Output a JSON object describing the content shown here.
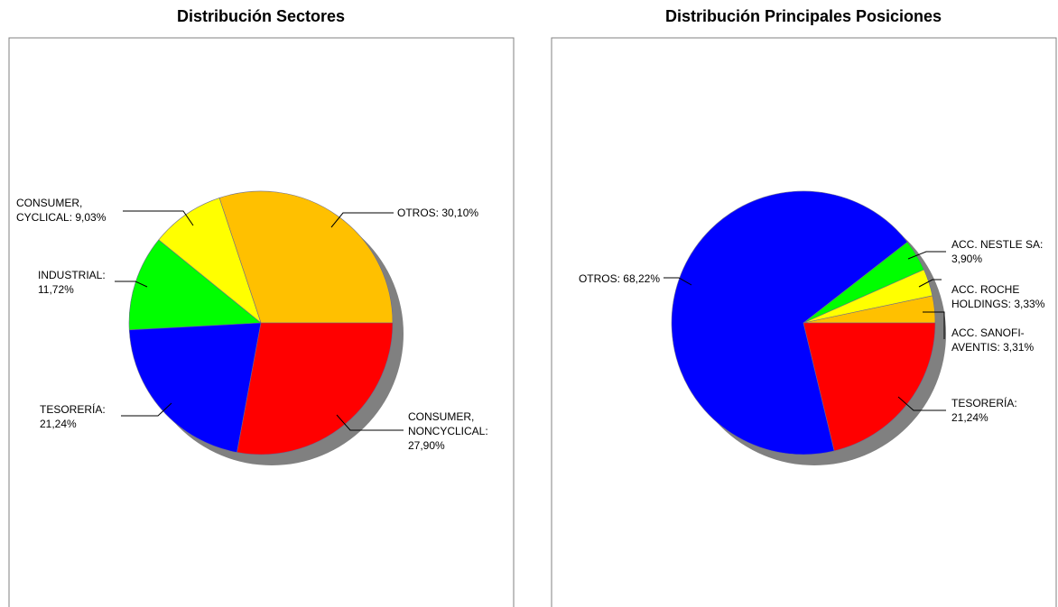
{
  "chart_data": [
    {
      "type": "pie",
      "title": "Distribución Sectores",
      "values": [
        30.1,
        9.03,
        11.72,
        21.24,
        27.9
      ],
      "value_labels": [
        "OTROS: 30,10%",
        "CONSUMER,\nCYCLICAL: 9,03%",
        "INDUSTRIAL:\n11,72%",
        "TESORERÍA:\n21,24%",
        "CONSUMER,\nNONCYCLICAL:\n27,90%"
      ],
      "colors": [
        "#ffc000",
        "#ffff00",
        "#00ff00",
        "#0000ff",
        "#ff0000"
      ]
    },
    {
      "type": "pie",
      "title": "Distribución Principales Posiciones",
      "values": [
        3.31,
        3.33,
        3.9,
        68.22,
        21.24
      ],
      "value_labels": [
        "ACC. SANOFI-\nAVENTIS: 3,31%",
        "ACC. ROCHE\nHOLDINGS: 3,33%",
        "ACC. NESTLE SA:\n3,90%",
        "OTROS: 68,22%",
        "TESORERÍA:\n21,24%"
      ],
      "colors": [
        "#ffc000",
        "#ffff00",
        "#00ff00",
        "#0000ff",
        "#ff0000"
      ]
    }
  ]
}
